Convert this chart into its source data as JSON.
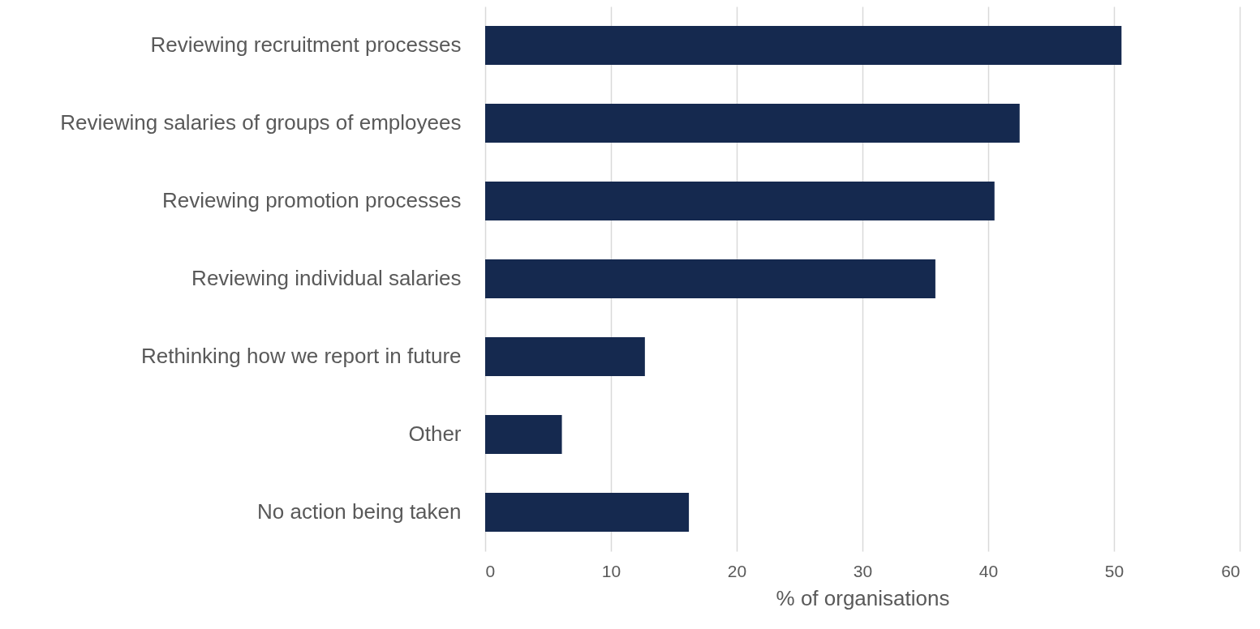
{
  "chart_data": {
    "type": "bar",
    "orientation": "horizontal",
    "xlabel": "% of organisations",
    "categories": [
      "Reviewing recruitment processes",
      "Reviewing salaries of groups of employees",
      "Reviewing promotion processes",
      "Reviewing individual salaries",
      "Rethinking how we report in future",
      "Other",
      "No action being taken"
    ],
    "values": [
      50.6,
      42.5,
      40.5,
      35.8,
      12.7,
      6.1,
      16.2
    ],
    "color": "#15294f",
    "xlim": [
      0,
      60
    ],
    "xticks": [
      0,
      10,
      20,
      30,
      40,
      50,
      60
    ],
    "grid": "x"
  }
}
